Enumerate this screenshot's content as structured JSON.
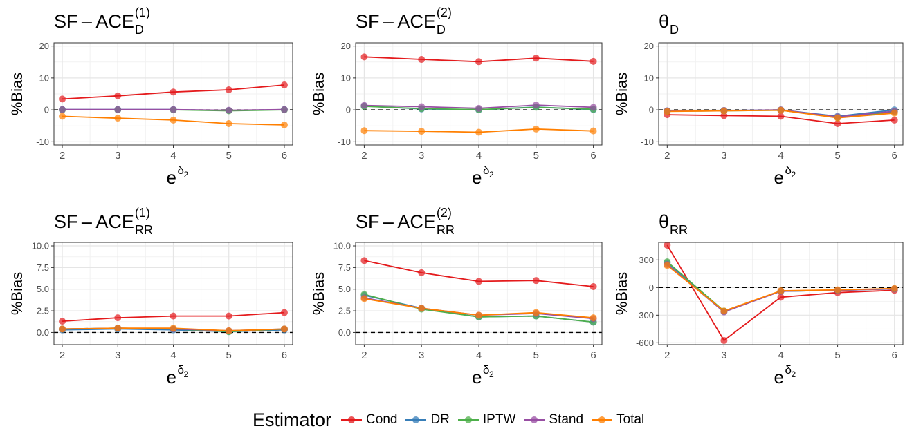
{
  "chart_data": [
    {
      "type": "line",
      "title_main": "SF – ACE",
      "title_sub": "D",
      "title_sup": "(1)",
      "ylabel": "%Bias",
      "xlabel_base": "e",
      "xlabel_sup": "δ",
      "xlabel_subsup": "2",
      "x": [
        2,
        3,
        4,
        5,
        6
      ],
      "ylim": [
        -11,
        21
      ],
      "yticks": [
        -10,
        0,
        10,
        20
      ],
      "ytick_labels": [
        "-10",
        "0",
        "10",
        "20"
      ],
      "series": [
        {
          "name": "Cond",
          "values": [
            3.4,
            4.4,
            5.6,
            6.3,
            7.8
          ]
        },
        {
          "name": "DR",
          "values": [
            0.1,
            0.1,
            0.1,
            -0.2,
            0.1
          ]
        },
        {
          "name": "IPTW",
          "values": [
            0.0,
            0.0,
            0.0,
            -0.3,
            0.0
          ]
        },
        {
          "name": "Stand",
          "values": [
            0.1,
            0.1,
            0.1,
            -0.1,
            0.1
          ]
        },
        {
          "name": "Total",
          "values": [
            -2.0,
            -2.6,
            -3.2,
            -4.3,
            -4.7
          ]
        }
      ]
    },
    {
      "type": "line",
      "title_main": "SF – ACE",
      "title_sub": "D",
      "title_sup": "(2)",
      "ylabel": "%Bias",
      "xlabel_base": "e",
      "xlabel_sup": "δ",
      "xlabel_subsup": "2",
      "x": [
        2,
        3,
        4,
        5,
        6
      ],
      "ylim": [
        -11,
        21
      ],
      "yticks": [
        -10,
        0,
        10,
        20
      ],
      "ytick_labels": [
        "-10",
        "0",
        "10",
        "20"
      ],
      "series": [
        {
          "name": "Cond",
          "values": [
            16.6,
            15.8,
            15.1,
            16.2,
            15.2
          ]
        },
        {
          "name": "DR",
          "values": [
            1.2,
            0.3,
            0.0,
            0.9,
            0.1
          ]
        },
        {
          "name": "IPTW",
          "values": [
            1.1,
            0.4,
            0.1,
            0.8,
            0.2
          ]
        },
        {
          "name": "Stand",
          "values": [
            1.4,
            1.0,
            0.5,
            1.5,
            0.8
          ]
        },
        {
          "name": "Total",
          "values": [
            -6.5,
            -6.7,
            -7.0,
            -6.0,
            -6.6
          ]
        }
      ]
    },
    {
      "type": "line",
      "title_main": "θ",
      "title_sub": "D",
      "title_sup": "",
      "ylabel": "%Bias",
      "xlabel_base": "e",
      "xlabel_sup": "δ",
      "xlabel_subsup": "2",
      "x": [
        2,
        3,
        4,
        5,
        6
      ],
      "ylim": [
        -11,
        21
      ],
      "yticks": [
        -10,
        0,
        10,
        20
      ],
      "ytick_labels": [
        "-10",
        "0",
        "10",
        "20"
      ],
      "series": [
        {
          "name": "Cond",
          "values": [
            -1.5,
            -1.8,
            -2.0,
            -4.3,
            -3.2
          ]
        },
        {
          "name": "DR",
          "values": [
            -0.3,
            -0.2,
            0.0,
            -2.0,
            0.0
          ]
        },
        {
          "name": "IPTW",
          "values": [
            -0.4,
            -0.3,
            -0.1,
            -2.4,
            -0.6
          ]
        },
        {
          "name": "Stand",
          "values": [
            -0.3,
            -0.2,
            0.0,
            -2.2,
            -0.4
          ]
        },
        {
          "name": "Total",
          "values": [
            -0.5,
            -0.3,
            -0.1,
            -2.5,
            -1.0
          ]
        }
      ]
    },
    {
      "type": "line",
      "title_main": "SF – ACE",
      "title_sub": "RR",
      "title_sup": "(1)",
      "ylabel": "%Bias",
      "xlabel_base": "e",
      "xlabel_sup": "δ",
      "xlabel_subsup": "2",
      "x": [
        2,
        3,
        4,
        5,
        6
      ],
      "ylim": [
        -1.4,
        10.4
      ],
      "yticks": [
        0,
        2.5,
        5,
        7.5,
        10
      ],
      "ytick_labels": [
        "0.0",
        "2.5",
        "5.0",
        "7.5",
        "10.0"
      ],
      "series": [
        {
          "name": "Cond",
          "values": [
            1.3,
            1.7,
            1.9,
            1.9,
            2.3
          ]
        },
        {
          "name": "DR",
          "values": [
            0.3,
            0.4,
            0.3,
            0.1,
            0.3
          ]
        },
        {
          "name": "IPTW",
          "values": [
            0.4,
            0.5,
            0.4,
            0.1,
            0.4
          ]
        },
        {
          "name": "Stand",
          "values": [
            0.4,
            0.5,
            0.4,
            0.2,
            0.4
          ]
        },
        {
          "name": "Total",
          "values": [
            0.4,
            0.5,
            0.5,
            0.2,
            0.4
          ]
        }
      ]
    },
    {
      "type": "line",
      "title_main": "SF – ACE",
      "title_sub": "RR",
      "title_sup": "(2)",
      "ylabel": "%Bias",
      "xlabel_base": "e",
      "xlabel_sup": "δ",
      "xlabel_subsup": "2",
      "x": [
        2,
        3,
        4,
        5,
        6
      ],
      "ylim": [
        -1.4,
        10.4
      ],
      "yticks": [
        0,
        2.5,
        5,
        7.5,
        10
      ],
      "ytick_labels": [
        "0.0",
        "2.5",
        "5.0",
        "7.5",
        "10.0"
      ],
      "series": [
        {
          "name": "Cond",
          "values": [
            8.3,
            6.9,
            5.9,
            6.0,
            5.3
          ]
        },
        {
          "name": "DR",
          "values": [
            4.3,
            2.8,
            1.8,
            1.9,
            1.2
          ]
        },
        {
          "name": "IPTW",
          "values": [
            4.4,
            2.7,
            1.8,
            1.9,
            1.2
          ]
        },
        {
          "name": "Stand",
          "values": [
            4.0,
            2.8,
            2.0,
            2.2,
            1.6
          ]
        },
        {
          "name": "Total",
          "values": [
            3.9,
            2.8,
            2.0,
            2.3,
            1.7
          ]
        }
      ]
    },
    {
      "type": "line",
      "title_main": "θ",
      "title_sub": "RR",
      "title_sup": "",
      "ylabel": "%Bias",
      "xlabel_base": "e",
      "xlabel_sup": "δ",
      "xlabel_subsup": "2",
      "x": [
        2,
        3,
        4,
        5,
        6
      ],
      "ylim": [
        -620,
        490
      ],
      "yticks": [
        -600,
        -300,
        0,
        300
      ],
      "ytick_labels": [
        "-600",
        "-300",
        "0",
        "300"
      ],
      "series": [
        {
          "name": "Cond",
          "values": [
            460,
            -575,
            -105,
            -55,
            -30
          ]
        },
        {
          "name": "DR",
          "values": [
            270,
            -260,
            -40,
            -30,
            -15
          ]
        },
        {
          "name": "IPTW",
          "values": [
            280,
            -255,
            -40,
            -30,
            -15
          ]
        },
        {
          "name": "Stand",
          "values": [
            250,
            -265,
            -40,
            -30,
            -15
          ]
        },
        {
          "name": "Total",
          "values": [
            240,
            -255,
            -35,
            -25,
            -10
          ]
        }
      ]
    }
  ],
  "legend": {
    "title": "Estimator",
    "items": [
      {
        "name": "Cond",
        "color": "#E41A1C"
      },
      {
        "name": "DR",
        "color": "#377EB8"
      },
      {
        "name": "IPTW",
        "color": "#4DAF4A"
      },
      {
        "name": "Stand",
        "color": "#984EA3"
      },
      {
        "name": "Total",
        "color": "#FF7F00"
      }
    ]
  }
}
